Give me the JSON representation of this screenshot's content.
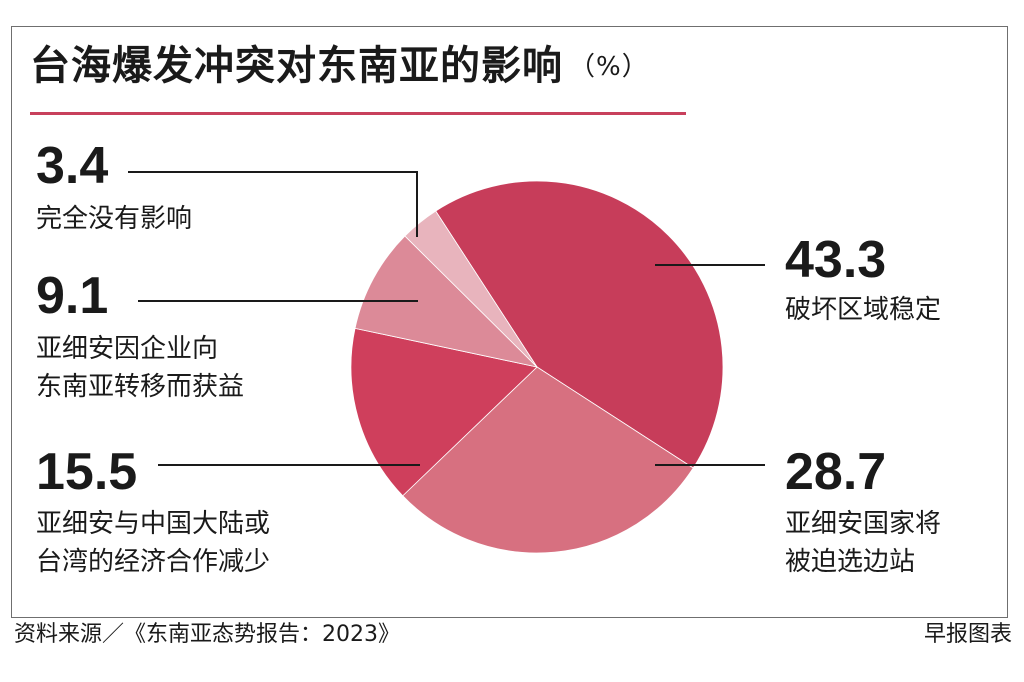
{
  "header": {
    "title": "台海爆发冲突对东南亚的影响",
    "unit": "（%）"
  },
  "chart_data": {
    "type": "pie",
    "title": "台海爆发冲突对东南亚的影响",
    "unit": "%",
    "slices": [
      {
        "label": "破坏区域稳定",
        "label_lines": [
          "破坏区域稳定"
        ],
        "value": 43.3,
        "value_text": "43.3",
        "color": "#c73d5a"
      },
      {
        "label": "亚细安国家将被迫选边站",
        "label_lines": [
          "亚细安国家将",
          "被迫选边站"
        ],
        "value": 28.7,
        "value_text": "28.7",
        "color": "#d77080"
      },
      {
        "label": "亚细安与中国大陆或台湾的经济合作减少",
        "label_lines": [
          "亚细安与中国大陆或",
          "台湾的经济合作减少"
        ],
        "value": 15.5,
        "value_text": "15.5",
        "color": "#cf3f5c"
      },
      {
        "label": "亚细安因企业向东南亚转移而获益",
        "label_lines": [
          "亚细安因企业向",
          "东南亚转移而获益"
        ],
        "value": 9.1,
        "value_text": "9.1",
        "color": "#dc8a98"
      },
      {
        "label": "完全没有影响",
        "label_lines": [
          "完全没有影响"
        ],
        "value": 3.4,
        "value_text": "3.4",
        "color": "#e8b4bd"
      }
    ]
  },
  "footer": {
    "source": "资料来源／《东南亚态势报告：2023》",
    "credit": "早报图表"
  }
}
